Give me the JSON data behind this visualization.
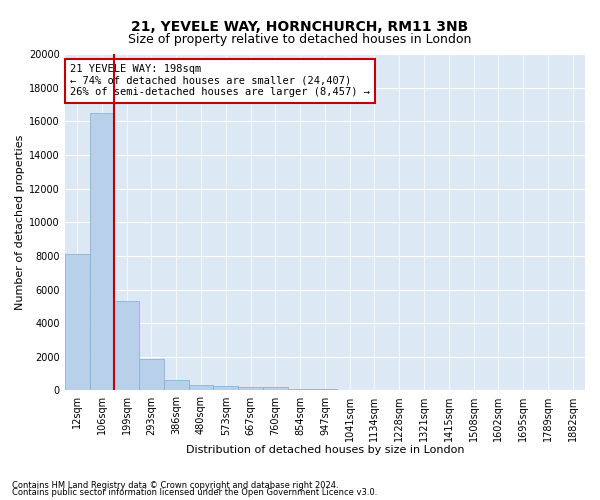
{
  "title": "21, YEVELE WAY, HORNCHURCH, RM11 3NB",
  "subtitle": "Size of property relative to detached houses in London",
  "xlabel": "Distribution of detached houses by size in London",
  "ylabel": "Number of detached properties",
  "footnote1": "Contains HM Land Registry data © Crown copyright and database right 2024.",
  "footnote2": "Contains public sector information licensed under the Open Government Licence v3.0.",
  "categories": [
    "12sqm",
    "106sqm",
    "199sqm",
    "293sqm",
    "386sqm",
    "480sqm",
    "573sqm",
    "667sqm",
    "760sqm",
    "854sqm",
    "947sqm",
    "1041sqm",
    "1134sqm",
    "1228sqm",
    "1321sqm",
    "1415sqm",
    "1508sqm",
    "1602sqm",
    "1695sqm",
    "1789sqm",
    "1882sqm"
  ],
  "values": [
    8100,
    16500,
    5300,
    1850,
    650,
    350,
    250,
    200,
    200,
    110,
    70,
    40,
    25,
    15,
    10,
    6,
    4,
    3,
    2,
    1,
    1
  ],
  "bar_color": "#b8d0ea",
  "bar_edge_color": "#7aafd4",
  "vline_x_index": 2,
  "vline_color": "#c00000",
  "annotation_text": "21 YEVELE WAY: 198sqm\n← 74% of detached houses are smaller (24,407)\n26% of semi-detached houses are larger (8,457) →",
  "annotation_box_color": "#c00000",
  "ylim": [
    0,
    20000
  ],
  "yticks": [
    0,
    2000,
    4000,
    6000,
    8000,
    10000,
    12000,
    14000,
    16000,
    18000,
    20000
  ],
  "background_color": "#dce9f5",
  "plot_background_color": "#ffffff",
  "title_fontsize": 10,
  "subtitle_fontsize": 9,
  "xlabel_fontsize": 8,
  "ylabel_fontsize": 8,
  "tick_fontsize": 7,
  "annotation_fontsize": 7.5
}
